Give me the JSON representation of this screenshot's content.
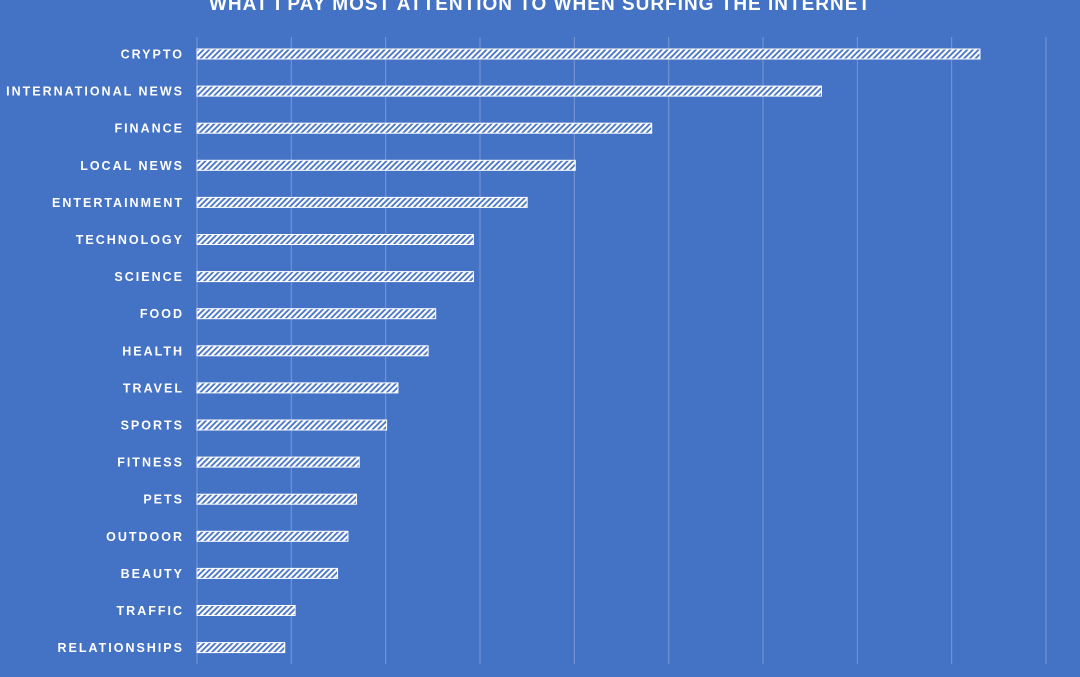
{
  "chart_data": {
    "type": "bar",
    "orientation": "horizontal",
    "title": "WHAT I PAY MOST ATTENTION TO WHEN SURFING THE INTERNET",
    "categories": [
      "CRYPTO",
      "INTERNATIONAL NEWS",
      "FINANCE",
      "LOCAL NEWS",
      "ENTERTAINMENT",
      "TECHNOLOGY",
      "SCIENCE",
      "FOOD",
      "HEALTH",
      "TRAVEL",
      "SPORTS",
      "FITNESS",
      "PETS",
      "OUTDOOR",
      "BEAUTY",
      "TRAFFIC",
      "RELATIONSHIPS"
    ],
    "values": [
      83,
      66.2,
      48.2,
      40.1,
      35,
      29.3,
      29.3,
      25.3,
      24.5,
      21.3,
      20.1,
      17.2,
      16.9,
      16,
      14.9,
      10.4,
      9.3
    ],
    "xlim": [
      0,
      90
    ],
    "x_gridlines": [
      0,
      10,
      20,
      30,
      40,
      50,
      60,
      70,
      80,
      90
    ],
    "grid": true,
    "bar_fill": "hatched",
    "colors": {
      "background": "#4472c4",
      "bar": "#ffffff",
      "grid": "#7a98d4",
      "text": "#ffffff"
    }
  }
}
